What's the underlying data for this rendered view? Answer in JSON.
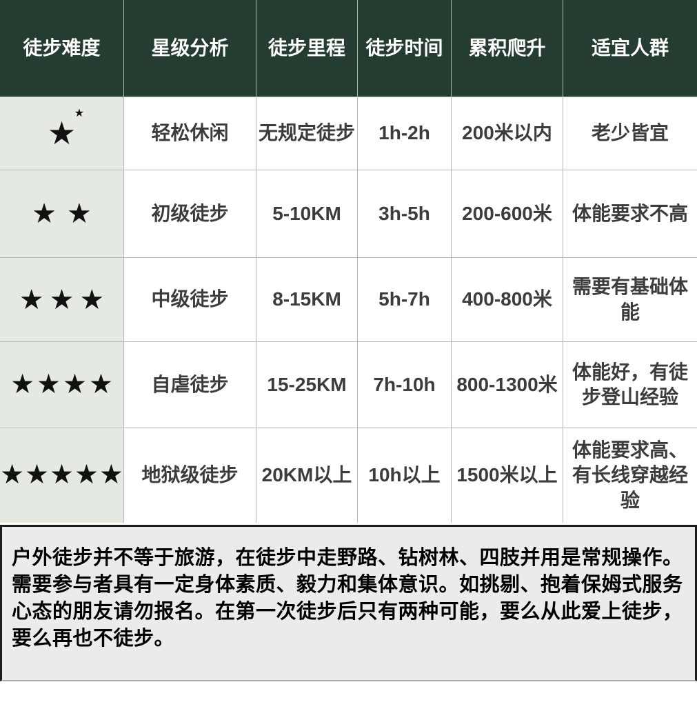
{
  "colors": {
    "header_bg": "#253c31",
    "header_text": "#ffffff",
    "difficulty_col_bg": "#e4e9e2",
    "cell_bg": "#ffffff",
    "grid_line": "#b0b8b5",
    "star_color": "#111111",
    "cell_text": "#3c3c3c",
    "note_bg": "#ebebeb",
    "note_border": "#1c1c1c",
    "note_text": "#000000"
  },
  "table": {
    "headers": [
      "徒步难度",
      "星级分析",
      "徒步里程",
      "徒步时间",
      "累积爬升",
      "适宜人群"
    ],
    "rows": [
      {
        "stars": "★",
        "sparkle": "★",
        "level": "轻松休闲",
        "distance": "无规定徒步",
        "time": "1h-2h",
        "climb": "200米以内",
        "suitable": "老少皆宜"
      },
      {
        "stars": "★★",
        "level": "初级徒步",
        "distance": "5-10KM",
        "time": "3h-5h",
        "climb": "200-600米",
        "suitable": "体能要求不高"
      },
      {
        "stars": "★★★",
        "level": "中级徒步",
        "distance": "8-15KM",
        "time": "5h-7h",
        "climb": "400-800米",
        "suitable": "需要有基础体能"
      },
      {
        "stars": "★★★★",
        "level": "自虐徒步",
        "distance": "15-25KM",
        "time": "7h-10h",
        "climb": "800-1300米",
        "suitable": "体能好，有徒步登山经验"
      },
      {
        "stars": "★★★★★",
        "level": "地狱级徒步",
        "distance": "20KM以上",
        "time": "10h以上",
        "climb": "1500米以上",
        "suitable": "体能要求高、有长线穿越经验"
      }
    ]
  },
  "note": {
    "text": "户外徒步并不等于旅游，在徒步中走野路、钻树林、四肢并用是常规操作。需要参与者具有一定身体素质、毅力和集体意识。如挑剔、抱着保姆式服务心态的朋友请勿报名。在第一次徒步后只有两种可能，要么从此爱上徒步，要么再也不徒步。"
  }
}
